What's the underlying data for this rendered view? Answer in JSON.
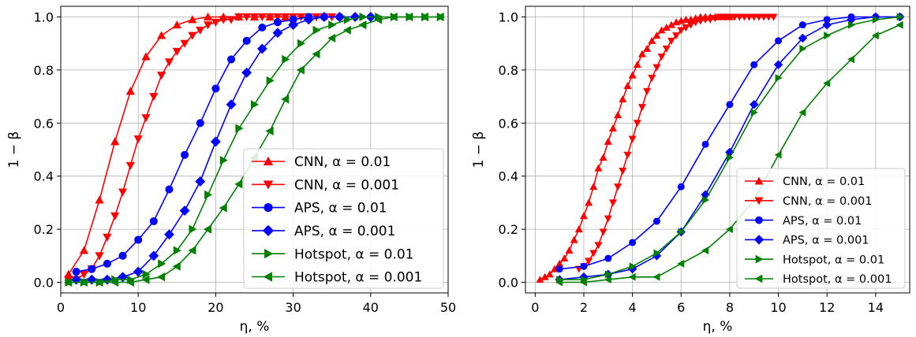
{
  "chart_data": [
    {
      "type": "line",
      "xlabel": "η, %",
      "ylabel": "1 − β",
      "xlim": [
        0,
        50
      ],
      "ylim": [
        -0.04,
        1.04
      ],
      "xticks": [
        0,
        10,
        20,
        30,
        40,
        50
      ],
      "yticks": [
        0.0,
        0.2,
        0.4,
        0.6,
        0.8,
        1.0
      ],
      "xtick_labels": [
        "0",
        "10",
        "20",
        "30",
        "40",
        "50"
      ],
      "ytick_labels": [
        "0.0",
        "0.2",
        "0.4",
        "0.6",
        "0.8",
        "1.0"
      ],
      "grid": true,
      "legend_position": "lower-right",
      "series": [
        {
          "name": "CNN, α = 0.01",
          "color": "#ff0000",
          "marker": "triangle-up",
          "x": [
            1,
            3,
            5,
            7,
            9,
            11,
            13,
            15,
            17,
            19,
            21,
            23,
            25,
            27,
            29
          ],
          "y": [
            0.03,
            0.12,
            0.31,
            0.53,
            0.72,
            0.85,
            0.93,
            0.97,
            0.99,
            1.0,
            1.0,
            1.0,
            1.0,
            1.0,
            1.0
          ]
        },
        {
          "name": "CNN, α = 0.001",
          "color": "#ff0000",
          "marker": "triangle-down",
          "x": [
            1,
            2,
            3,
            4,
            5,
            6,
            7,
            8,
            9,
            10,
            11,
            12,
            13,
            14,
            15,
            16,
            17,
            18,
            19,
            20,
            21,
            22,
            23,
            24,
            25,
            26,
            27,
            28,
            29,
            30,
            31,
            32,
            33,
            34,
            35
          ],
          "y": [
            0.01,
            0.01,
            0.03,
            0.05,
            0.1,
            0.17,
            0.25,
            0.34,
            0.44,
            0.54,
            0.62,
            0.7,
            0.78,
            0.83,
            0.87,
            0.9,
            0.93,
            0.95,
            0.97,
            0.98,
            0.99,
            0.99,
            1.0,
            1.0,
            1.0,
            1.0,
            1.0,
            1.0,
            1.0,
            1.0,
            1.0,
            1.0,
            1.0,
            1.0,
            1.0
          ]
        },
        {
          "name": "APS, α = 0.01",
          "color": "#0000ff",
          "marker": "circle",
          "x": [
            2,
            4,
            6,
            8,
            10,
            12,
            14,
            16,
            18,
            20,
            22,
            24,
            26,
            28,
            30,
            32,
            34,
            36
          ],
          "y": [
            0.04,
            0.05,
            0.07,
            0.1,
            0.16,
            0.23,
            0.35,
            0.48,
            0.6,
            0.73,
            0.84,
            0.91,
            0.96,
            0.98,
            0.99,
            1.0,
            1.0,
            1.0
          ]
        },
        {
          "name": "APS, α = 0.001",
          "color": "#0000ff",
          "marker": "diamond",
          "x": [
            2,
            4,
            6,
            8,
            10,
            12,
            14,
            16,
            18,
            20,
            22,
            24,
            26,
            28,
            30,
            32,
            34,
            36,
            38,
            40
          ],
          "y": [
            0.01,
            0.01,
            0.01,
            0.02,
            0.04,
            0.1,
            0.18,
            0.27,
            0.38,
            0.53,
            0.67,
            0.79,
            0.88,
            0.94,
            0.97,
            0.99,
            1.0,
            1.0,
            1.0,
            1.0
          ]
        },
        {
          "name": "Hotspot, α = 0.01",
          "color": "#008000",
          "marker": "triangle-right",
          "x": [
            1,
            3,
            5,
            7,
            9,
            11,
            13,
            15,
            17,
            19,
            21,
            23,
            25,
            27,
            29,
            31,
            33,
            35,
            37,
            39,
            41,
            43,
            45,
            47,
            49
          ],
          "y": [
            0.0,
            0.0,
            0.0,
            0.01,
            0.01,
            0.03,
            0.07,
            0.12,
            0.2,
            0.33,
            0.46,
            0.58,
            0.67,
            0.76,
            0.84,
            0.9,
            0.95,
            0.97,
            0.99,
            1.0,
            1.0,
            1.0,
            1.0,
            1.0,
            1.0
          ]
        },
        {
          "name": "Hotspot, α = 0.001",
          "color": "#008000",
          "marker": "triangle-left",
          "x": [
            1,
            3,
            5,
            7,
            9,
            11,
            13,
            15,
            17,
            19,
            21,
            23,
            25,
            27,
            29,
            31,
            33,
            35,
            37,
            39,
            41,
            43,
            45,
            47,
            49
          ],
          "y": [
            0.0,
            0.0,
            0.0,
            0.0,
            0.0,
            0.01,
            0.02,
            0.06,
            0.12,
            0.2,
            0.28,
            0.37,
            0.47,
            0.57,
            0.69,
            0.8,
            0.86,
            0.92,
            0.95,
            0.97,
            0.99,
            1.0,
            1.0,
            1.0,
            1.0
          ]
        }
      ]
    },
    {
      "type": "line",
      "xlabel": "η, %",
      "ylabel": "1 − β",
      "xlim": [
        -0.4,
        15.4
      ],
      "ylim": [
        -0.04,
        1.04
      ],
      "xticks": [
        0,
        2,
        4,
        6,
        8,
        10,
        12,
        14
      ],
      "yticks": [
        0.0,
        0.2,
        0.4,
        0.6,
        0.8,
        1.0
      ],
      "xtick_labels": [
        "0",
        "2",
        "4",
        "6",
        "8",
        "10",
        "12",
        "14"
      ],
      "ytick_labels": [
        "0.0",
        "0.2",
        "0.4",
        "0.6",
        "0.8",
        "1.0"
      ],
      "grid": true,
      "legend_position": "lower-right",
      "series": [
        {
          "name": "CNN, α = 0.01",
          "color": "#ff0000",
          "marker": "triangle-up",
          "x": [
            0.2,
            0.4,
            0.6,
            0.8,
            1.0,
            1.2,
            1.4,
            1.6,
            1.8,
            2.0,
            2.2,
            2.4,
            2.6,
            2.8,
            3.0,
            3.2,
            3.4,
            3.6,
            3.8,
            4.0,
            4.2,
            4.4,
            4.6,
            4.8,
            5.0,
            5.2,
            5.4,
            5.6,
            5.8,
            6.0,
            6.2,
            6.4,
            6.6,
            6.8,
            7.0,
            7.2,
            7.4,
            7.6,
            7.8,
            8.0
          ],
          "y": [
            0.01,
            0.02,
            0.03,
            0.05,
            0.07,
            0.09,
            0.12,
            0.16,
            0.2,
            0.25,
            0.3,
            0.36,
            0.43,
            0.47,
            0.53,
            0.58,
            0.63,
            0.69,
            0.74,
            0.78,
            0.82,
            0.86,
            0.88,
            0.91,
            0.93,
            0.95,
            0.96,
            0.97,
            0.98,
            0.985,
            0.99,
            0.99,
            0.995,
            1.0,
            1.0,
            1.0,
            1.0,
            1.0,
            1.0,
            1.0
          ]
        },
        {
          "name": "CNN, α = 0.001",
          "color": "#ff0000",
          "marker": "triangle-down",
          "x": [
            1.8,
            2.0,
            2.2,
            2.4,
            2.6,
            2.8,
            3.0,
            3.2,
            3.4,
            3.6,
            3.8,
            4.0,
            4.2,
            4.4,
            4.6,
            4.8,
            5.0,
            5.2,
            5.4,
            5.6,
            5.8,
            6.0,
            6.2,
            6.4,
            6.6,
            6.8,
            7.0,
            7.2,
            7.4,
            7.6,
            7.8,
            8.0,
            8.2,
            8.4,
            8.6,
            8.8,
            9.0,
            9.2,
            9.4,
            9.6,
            9.8
          ],
          "y": [
            0.05,
            0.06,
            0.08,
            0.11,
            0.14,
            0.19,
            0.24,
            0.3,
            0.36,
            0.42,
            0.48,
            0.54,
            0.6,
            0.66,
            0.72,
            0.77,
            0.81,
            0.85,
            0.88,
            0.91,
            0.93,
            0.95,
            0.96,
            0.97,
            0.98,
            0.985,
            0.99,
            0.99,
            0.995,
            1.0,
            1.0,
            1.0,
            1.0,
            1.0,
            1.0,
            1.0,
            1.0,
            1.0,
            1.0,
            1.0,
            1.0
          ]
        },
        {
          "name": "APS, α = 0.01",
          "color": "#0000ff",
          "marker": "circle",
          "x": [
            1,
            2,
            3,
            4,
            5,
            6,
            7,
            8,
            9,
            10,
            11,
            12,
            13,
            14,
            15
          ],
          "y": [
            0.05,
            0.06,
            0.09,
            0.15,
            0.23,
            0.36,
            0.52,
            0.67,
            0.82,
            0.91,
            0.97,
            0.99,
            1.0,
            1.0,
            1.0
          ]
        },
        {
          "name": "APS, α = 0.001",
          "color": "#0000ff",
          "marker": "diamond",
          "x": [
            1,
            2,
            3,
            4,
            5,
            6,
            7,
            8,
            9,
            10,
            11,
            12,
            13,
            14,
            15
          ],
          "y": [
            0.01,
            0.02,
            0.03,
            0.05,
            0.1,
            0.19,
            0.33,
            0.49,
            0.67,
            0.82,
            0.92,
            0.97,
            0.99,
            1.0,
            1.0
          ]
        },
        {
          "name": "Hotspot, α = 0.01",
          "color": "#008000",
          "marker": "triangle-right",
          "x": [
            1,
            2,
            3,
            4,
            5,
            6,
            7,
            8,
            9,
            10,
            11,
            12,
            13,
            14,
            15
          ],
          "y": [
            0.01,
            0.01,
            0.03,
            0.06,
            0.11,
            0.19,
            0.31,
            0.47,
            0.64,
            0.77,
            0.88,
            0.93,
            0.97,
            0.99,
            1.0
          ]
        },
        {
          "name": "Hotspot, α = 0.001",
          "color": "#008000",
          "marker": "triangle-left",
          "x": [
            1,
            2,
            3,
            4,
            5,
            6,
            7,
            8,
            9,
            10,
            11,
            12,
            13,
            14,
            15
          ],
          "y": [
            0.0,
            0.0,
            0.01,
            0.02,
            0.02,
            0.07,
            0.12,
            0.2,
            0.31,
            0.48,
            0.64,
            0.75,
            0.84,
            0.93,
            0.97
          ]
        }
      ]
    }
  ]
}
